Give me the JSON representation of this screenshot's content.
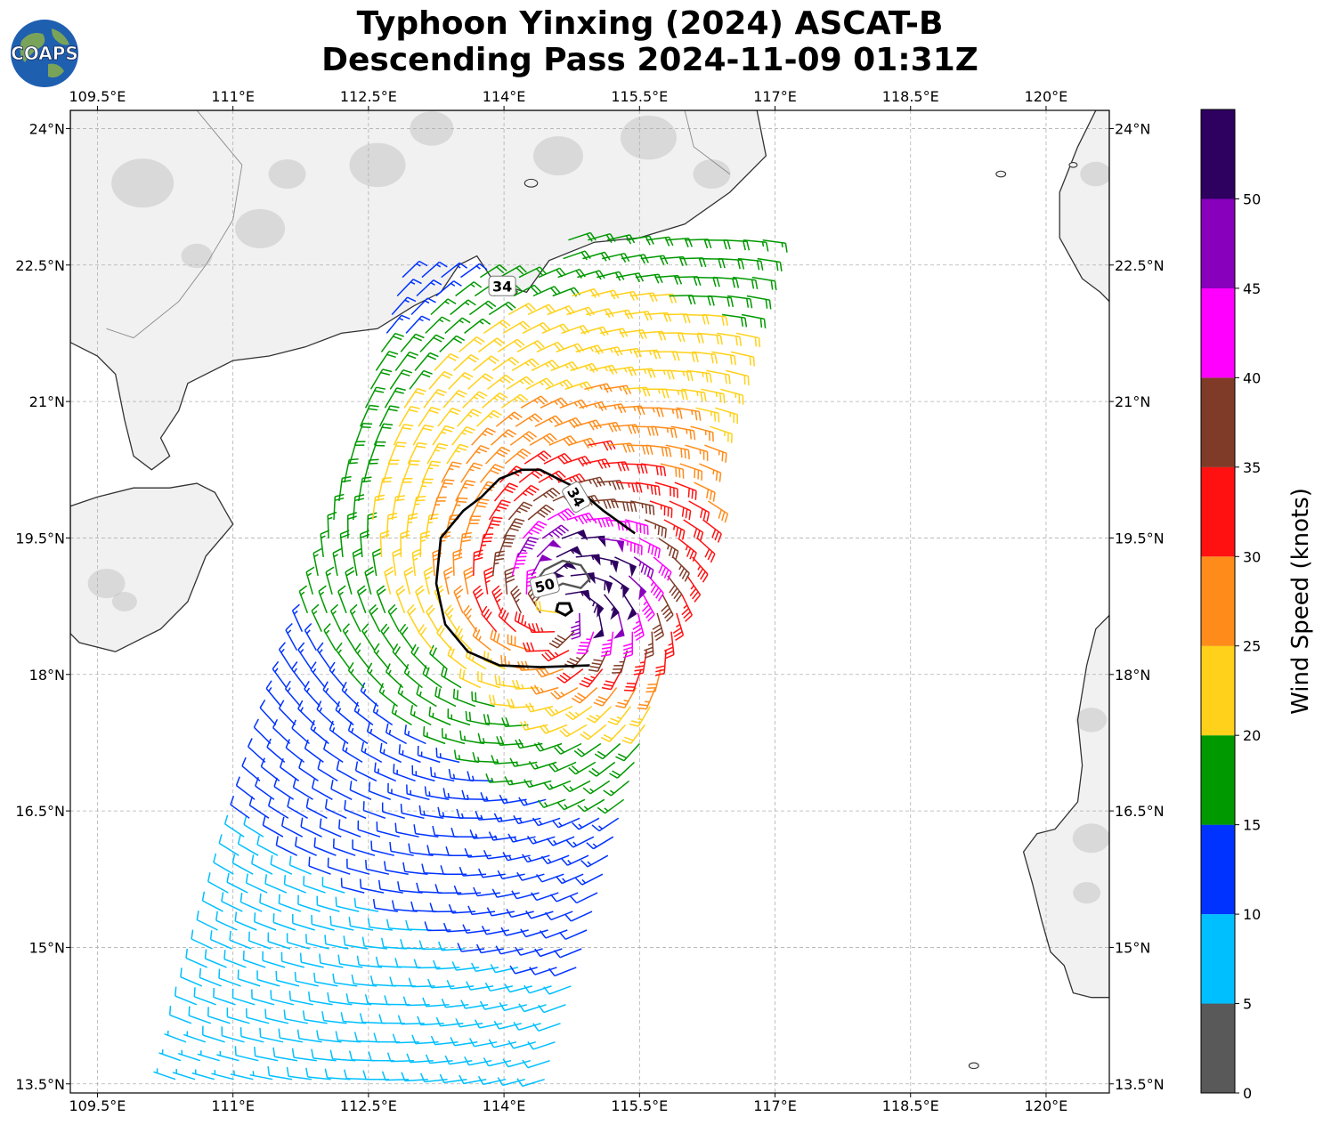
{
  "title": {
    "line1": "Typhoon Yinxing (2024) ASCAT-B",
    "line2": "Descending Pass 2024-11-09 01:31Z"
  },
  "logo": {
    "text": "COAPS",
    "ocean_color": "#1f5fb0",
    "land_color": "#7aa35a"
  },
  "colors": {
    "coast": "#333333",
    "border": "#8a8a8a",
    "grid": "#b0b0b0",
    "terrain_light": "#f1f1f1",
    "terrain_dark": "#bdbdbd"
  },
  "chart_data": {
    "type": "wind-barb map",
    "projection": "PlateCarree",
    "lon_range": [
      109.2,
      120.7
    ],
    "lat_range": [
      13.4,
      24.2
    ],
    "lon_ticks": [
      109.5,
      111,
      112.5,
      114,
      115.5,
      117,
      118.5,
      120
    ],
    "lon_tick_labels": [
      "109.5°E",
      "111°E",
      "112.5°E",
      "114°E",
      "115.5°E",
      "117°E",
      "118.5°E",
      "120°E"
    ],
    "lat_ticks": [
      24,
      22.5,
      21,
      19.5,
      18,
      16.5,
      15,
      13.5
    ],
    "lat_tick_labels": [
      "24°N",
      "22.5°N",
      "21°N",
      "19.5°N",
      "18°N",
      "16.5°N",
      "15°N",
      "13.5°N"
    ],
    "grid": true,
    "storm_center": {
      "lon": 114.65,
      "lat": 18.73
    },
    "contours": [
      {
        "level": 34,
        "label": "34",
        "color": "#000000"
      },
      {
        "level": 50,
        "label": "50",
        "color": "#555555"
      }
    ],
    "colorbar": {
      "label": "Wind Speed (knots)",
      "boundaries": [
        0,
        5,
        10,
        15,
        20,
        25,
        30,
        35,
        40,
        45,
        50,
        55
      ],
      "tick_labels": [
        "0",
        "5",
        "10",
        "15",
        "20",
        "25",
        "30",
        "35",
        "40",
        "45",
        "50"
      ],
      "colors": [
        "#595959",
        "#00bfff",
        "#0033ff",
        "#009900",
        "#ffd11a",
        "#ff8c1a",
        "#ff1111",
        "#7f3b28",
        "#ff00ff",
        "#8800bb",
        "#2e0060"
      ]
    }
  }
}
